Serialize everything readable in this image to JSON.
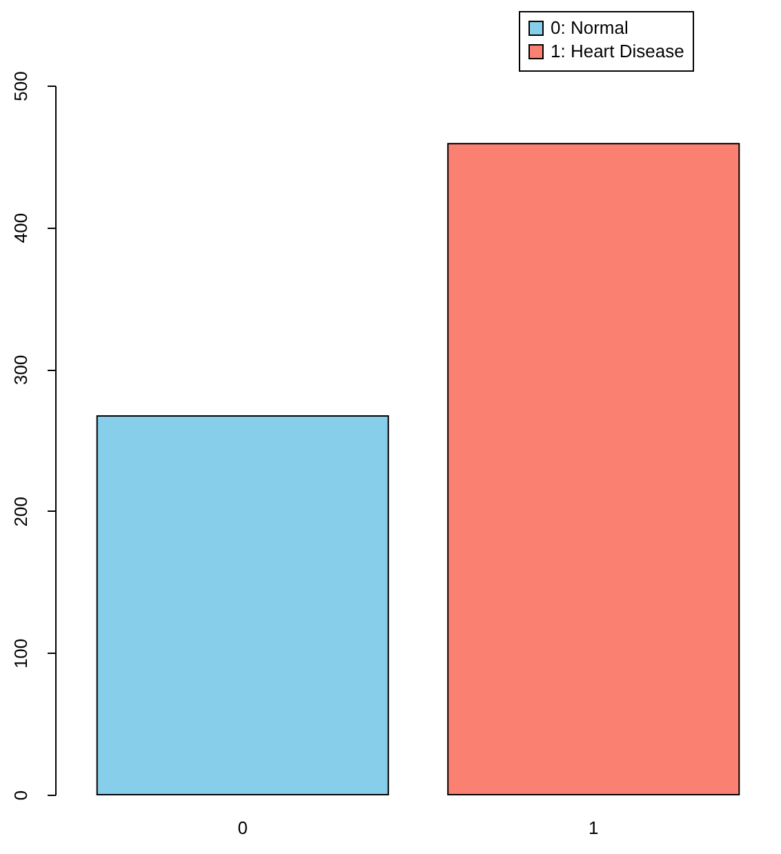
{
  "chart_data": {
    "type": "bar",
    "categories": [
      "0",
      "1"
    ],
    "series": [
      {
        "name": "0: Normal",
        "color": "#87ceeb",
        "values": [
          267,
          null
        ]
      },
      {
        "name": "1: Heart Disease",
        "color": "#fa8072",
        "values": [
          null,
          459
        ]
      }
    ],
    "ylim": [
      0,
      500
    ],
    "yticks": [
      0,
      100,
      200,
      300,
      400,
      500
    ],
    "grid": false,
    "legend": "top right"
  }
}
